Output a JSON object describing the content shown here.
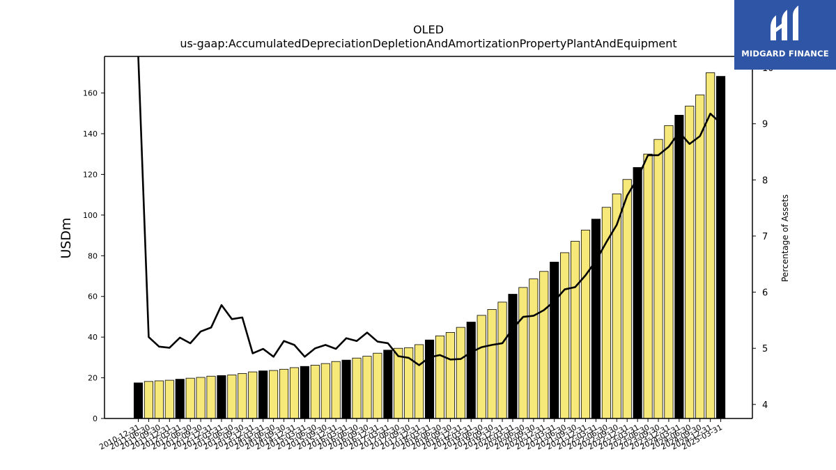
{
  "chart_data": {
    "type": "bar",
    "title": "OLED",
    "subtitle": "us-gaap:AccumulatedDepreciationDepletionAndAmortizationPropertyPlantAndEquipment",
    "ylabel": "USDm",
    "y2label": "Percentage of Assets",
    "ylim": [
      0,
      178
    ],
    "y2lim": [
      3.75,
      10.2
    ],
    "yticks": [
      0,
      20,
      40,
      60,
      80,
      100,
      120,
      140,
      160
    ],
    "y2ticks": [
      4,
      5,
      6,
      7,
      8,
      9
    ],
    "y2ticks_extra": [
      10
    ],
    "categories": [
      "2010-12-31",
      "2011-06-30",
      "2011-09-30",
      "2011-12-31",
      "2012-03-31",
      "2012-06-30",
      "2012-09-30",
      "2012-12-31",
      "2013-03-31",
      "2013-06-30",
      "2013-09-30",
      "2013-12-31",
      "2014-03-31",
      "2014-06-30",
      "2014-09-30",
      "2014-12-31",
      "2015-03-31",
      "2015-06-30",
      "2015-09-30",
      "2015-12-31",
      "2016-03-31",
      "2016-06-30",
      "2016-09-30",
      "2016-12-31",
      "2017-03-31",
      "2017-06-30",
      "2017-09-30",
      "2017-12-31",
      "2018-03-31",
      "2018-06-30",
      "2018-09-30",
      "2018-12-31",
      "2019-03-31",
      "2019-06-30",
      "2019-09-30",
      "2019-12-31",
      "2020-03-31",
      "2020-06-30",
      "2020-09-30",
      "2020-12-31",
      "2021-03-31",
      "2021-06-30",
      "2021-09-30",
      "2021-12-31",
      "2022-03-31",
      "2022-06-30",
      "2022-09-30",
      "2022-12-31",
      "2023-03-31",
      "2023-06-30",
      "2023-09-30",
      "2023-12-31",
      "2024-03-31",
      "2024-06-30",
      "2024-09-30",
      "2024-12-31",
      "2025-03-31"
    ],
    "values": [
      17.5,
      18.2,
      18.5,
      18.8,
      19.3,
      19.8,
      20.2,
      20.8,
      21.1,
      21.4,
      22.1,
      22.9,
      23.4,
      23.6,
      24.2,
      25.0,
      25.6,
      26.2,
      27.0,
      28.0,
      28.7,
      29.7,
      30.6,
      32.1,
      33.6,
      34.5,
      34.8,
      36.3,
      38.6,
      40.6,
      42.3,
      44.8,
      47.4,
      50.7,
      53.6,
      57.2,
      61.1,
      64.4,
      68.6,
      72.3,
      76.9,
      81.5,
      87.1,
      92.6,
      98.0,
      103.8,
      110.4,
      117.5,
      123.4,
      130.0,
      137.2,
      144.0,
      149.1,
      153.6,
      159.1,
      170.0,
      168.2
    ],
    "highlight_color": "#000000",
    "bar_color": "#f7e87a",
    "line_series": {
      "axis": "right",
      "values": [
        10.2,
        5.2,
        5.03,
        5.01,
        5.19,
        5.09,
        5.3,
        5.37,
        5.77,
        5.52,
        5.55,
        4.91,
        4.99,
        4.85,
        5.13,
        5.06,
        4.85,
        5.0,
        5.06,
        4.99,
        5.18,
        5.13,
        5.28,
        5.12,
        5.09,
        4.86,
        4.83,
        4.7,
        4.84,
        4.88,
        4.8,
        4.81,
        4.93,
        5.02,
        5.06,
        5.09,
        5.35,
        5.56,
        5.58,
        5.68,
        5.84,
        6.05,
        6.09,
        6.3,
        6.56,
        6.89,
        7.2,
        7.72,
        8.03,
        8.44,
        8.44,
        8.59,
        8.85,
        8.64,
        8.78,
        9.18,
        9.01
      ]
    }
  },
  "logo": {
    "text": "MIDGARD FINANCE",
    "color": "#2f56a6"
  }
}
